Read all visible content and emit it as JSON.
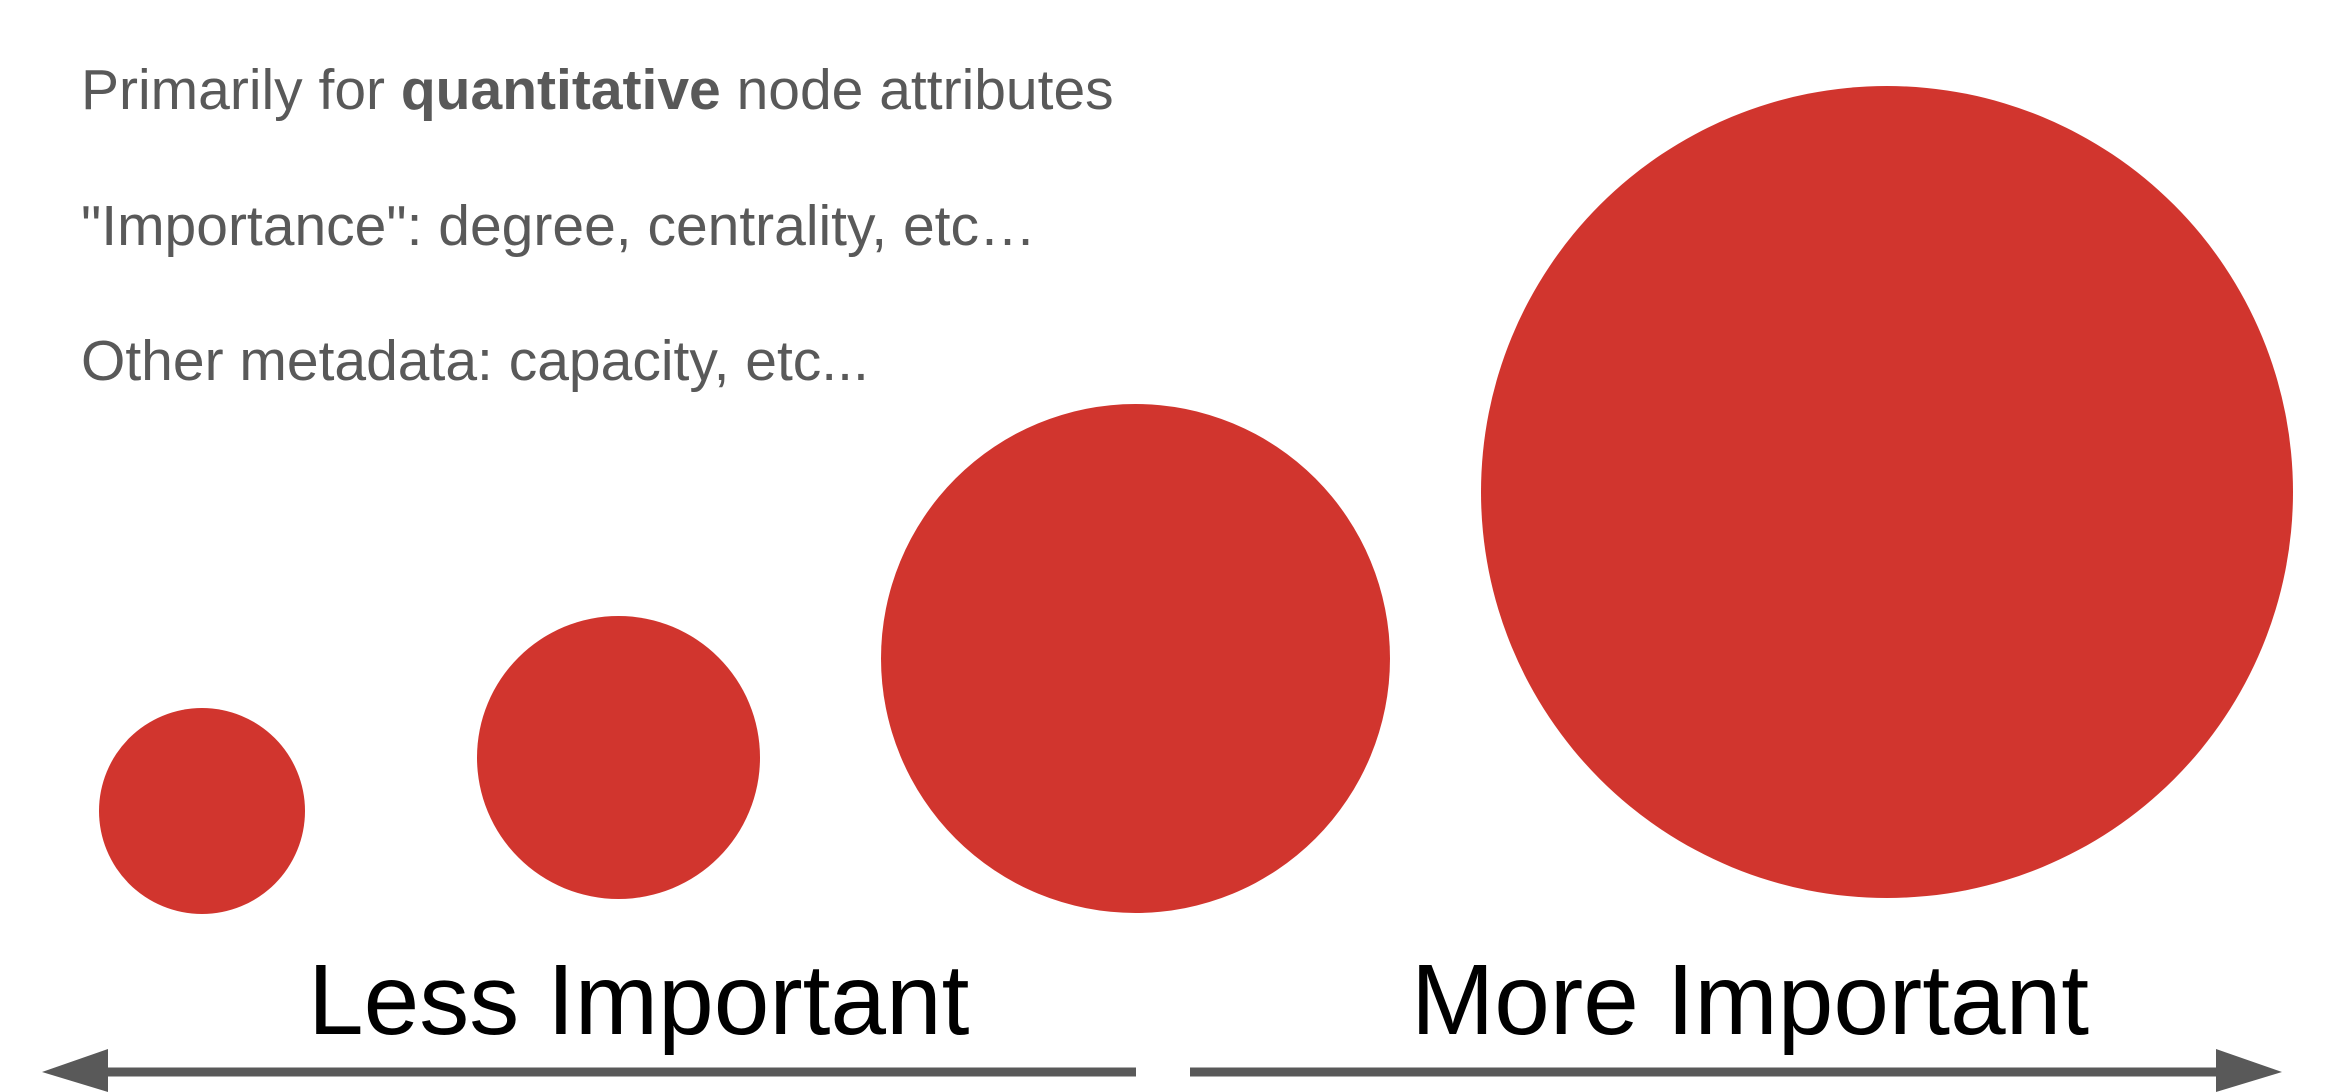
{
  "bullets": {
    "line1": {
      "prefix": "Primarily for ",
      "bold": "quantitative",
      "suffix": " node attributes"
    },
    "line2": "\"Importance\": degree, centrality, etc…",
    "line3": "Other metadata: capacity, etc..."
  },
  "circles": {
    "color": "#d1352e",
    "items": [
      {
        "rank": 1
      },
      {
        "rank": 2
      },
      {
        "rank": 3
      },
      {
        "rank": 4
      }
    ]
  },
  "scale": {
    "left_label": "Less Important",
    "right_label": "More Important",
    "arrow_color": "#595959"
  }
}
